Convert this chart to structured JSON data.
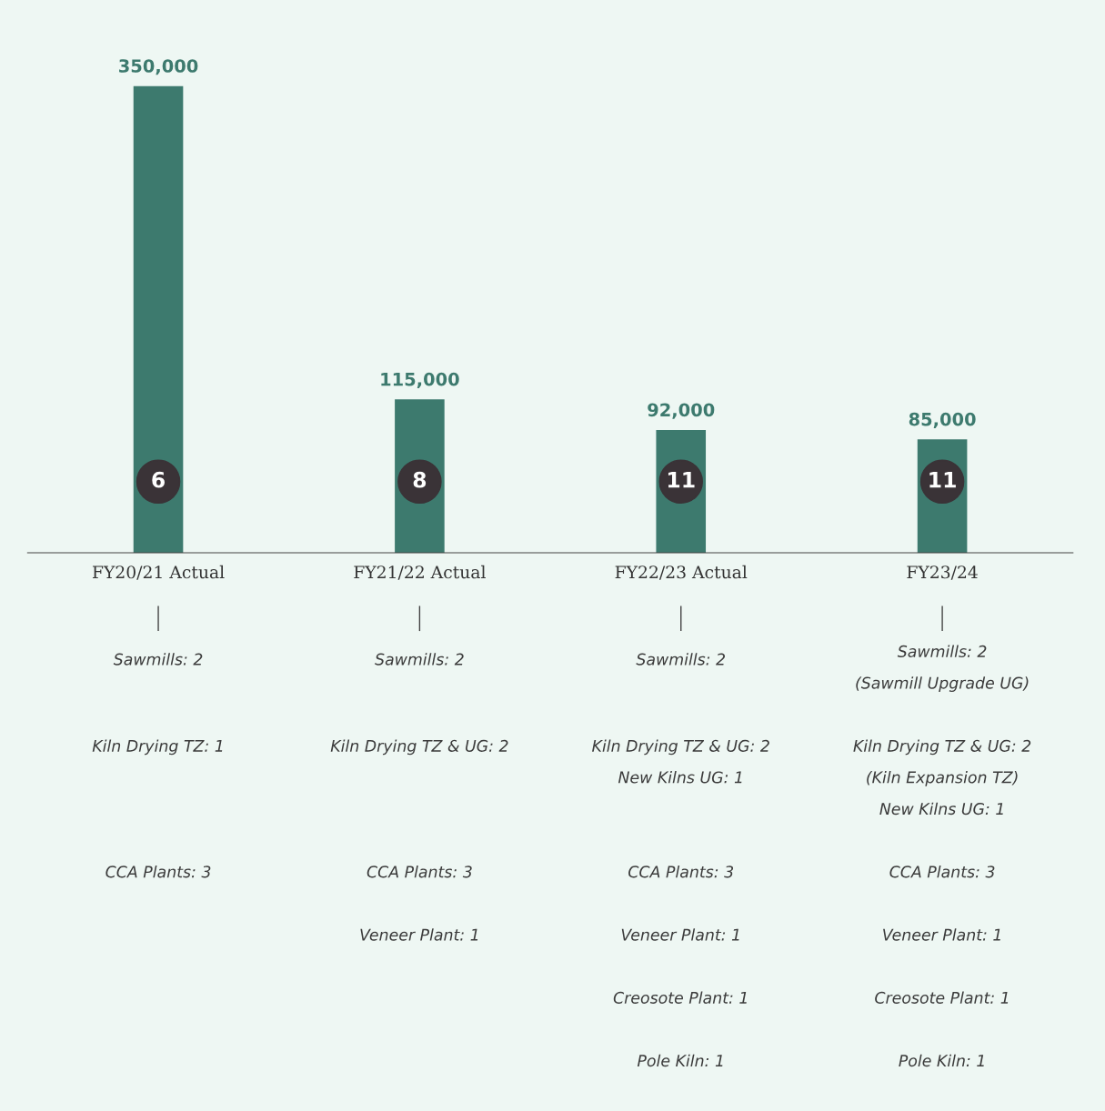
{
  "chart_data": {
    "type": "bar",
    "categories": [
      "FY20/21 Actual",
      "FY21/22 Actual",
      "FY22/23 Actual",
      "FY23/24"
    ],
    "values": [
      350000,
      115000,
      92000,
      85000
    ],
    "value_labels": [
      "350,000",
      "115,000",
      "92,000",
      "85,000"
    ],
    "color": "#3d7a6e",
    "annotations": [
      "6",
      "8",
      "11",
      "11",
      "Sawmills: 2",
      "Kiln Drying TZ: 1",
      "CCA Plants: 3",
      "Sawmills: 2",
      "Kiln Drying TZ & UG: 2",
      "CCA Plants: 3",
      "Veneer Plant: 1",
      "Sawmills: 2",
      "Kiln Drying TZ & UG: 2",
      "New Kilns UG: 1",
      "CCA Plants: 3",
      "Veneer Plant: 1",
      "Creosote Plant: 1",
      "Pole Kiln: 1",
      "Sawmills: 2",
      "(Sawmill Upgrade UG)",
      "Kiln Drying TZ & UG: 2",
      "(Kiln Expansion TZ)",
      "New Kilns UG: 1",
      "CCA Plants: 3",
      "Veneer Plant: 1",
      "Creosote Plant: 1",
      "Pole Kiln: 1"
    ]
  }
}
